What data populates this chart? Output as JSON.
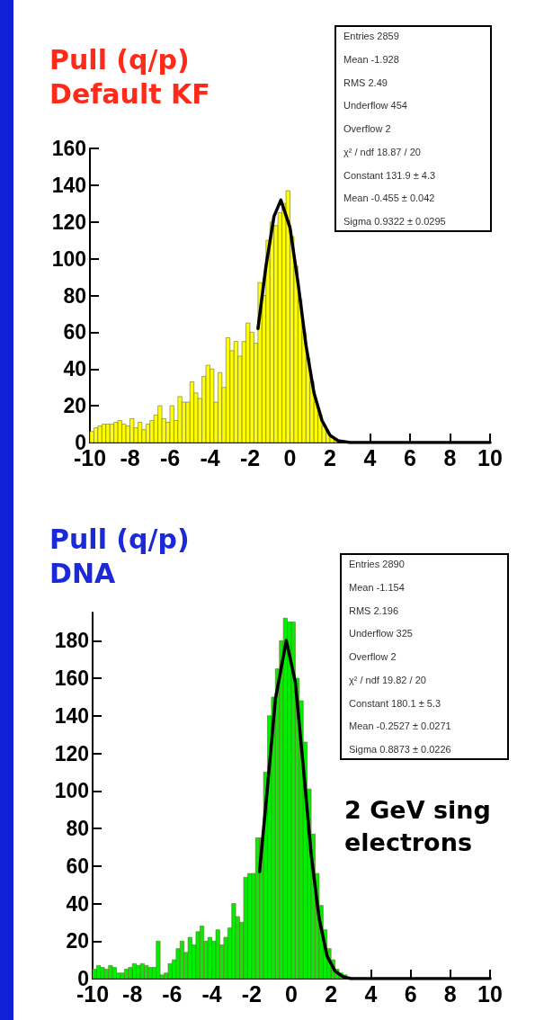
{
  "chart_data": [
    {
      "type": "histogram",
      "title": "Pull (q/p) Default KF",
      "xlim": [
        -10,
        10
      ],
      "xticks": [
        -10,
        -8,
        -6,
        -4,
        -2,
        0,
        2,
        4,
        6,
        8,
        10
      ],
      "ylim": [
        0,
        160
      ],
      "yticks": [
        0,
        20,
        40,
        60,
        80,
        100,
        120,
        140,
        160
      ],
      "bins": [
        -10,
        -9.8,
        -9.6,
        -9.4,
        -9.2,
        -9,
        -8.8,
        -8.6,
        -8.4,
        -8.2,
        -8,
        -7.8,
        -7.6,
        -7.4,
        -7.2,
        -7,
        -6.8,
        -6.6,
        -6.4,
        -6.2,
        -6,
        -5.8,
        -5.6,
        -5.4,
        -5.2,
        -5,
        -4.8,
        -4.6,
        -4.4,
        -4.2,
        -4,
        -3.8,
        -3.6,
        -3.4,
        -3.2,
        -3,
        -2.8,
        -2.6,
        -2.4,
        -2.2,
        -2,
        -1.8,
        -1.6,
        -1.4,
        -1.2,
        -1,
        -0.8,
        -0.6,
        -0.4,
        -0.2,
        0,
        0.2,
        0.4,
        0.6,
        0.8,
        1,
        1.2,
        1.4,
        1.6,
        1.8,
        2,
        2.2,
        2.4,
        2.6,
        2.8,
        3,
        3.2,
        3.4,
        3.6,
        3.8,
        4,
        4.2,
        4.4,
        4.6,
        4.8,
        5,
        5.2,
        5.4,
        5.6,
        5.8,
        6,
        6.2,
        6.4,
        6.6,
        6.8,
        7,
        7.2,
        7.4,
        7.6,
        7.8,
        8,
        8.2,
        8.4,
        8.6,
        8.8,
        9,
        9.2,
        9.4,
        9.6,
        9.8,
        10
      ],
      "series": [
        {
          "color": "#ffff00",
          "values": [
            6,
            8,
            9,
            10,
            10,
            10,
            11,
            12,
            10,
            9,
            13,
            8,
            11,
            7,
            10,
            12,
            15,
            20,
            13,
            11,
            20,
            12,
            25,
            22,
            22,
            33,
            27,
            24,
            36,
            42,
            40,
            22,
            38,
            30,
            57,
            50,
            55,
            47,
            55,
            65,
            60,
            54,
            87,
            80,
            110,
            120,
            118,
            125,
            130,
            137,
            112,
            96,
            78,
            60,
            46,
            33,
            22,
            15,
            9,
            5,
            3,
            2,
            null,
            null,
            0,
            0,
            0,
            0,
            0,
            0,
            0,
            0,
            0,
            0,
            0,
            0,
            0,
            0,
            0,
            0,
            0,
            0,
            0,
            0,
            0,
            0,
            0,
            0,
            0,
            0,
            0,
            0,
            0,
            0,
            0,
            0,
            0,
            0,
            0,
            0
          ]
        },
        {
          "type": "line",
          "color": "#000000",
          "x": [
            -1.6,
            -1.2,
            -0.8,
            -0.455,
            0,
            0.4,
            0.8,
            1.2,
            1.6,
            2,
            2.4,
            3,
            4,
            6,
            8,
            10
          ],
          "values": [
            62,
            96,
            123,
            131.9,
            117,
            87,
            53,
            27,
            12,
            4,
            1,
            0,
            0,
            0,
            0,
            0
          ]
        }
      ],
      "annotations": [
        "Entries 2859",
        "Mean -1.928",
        "RMS 2.49",
        "Underflow 454",
        "Overflow 2",
        "χ² / ndf 18.87 / 20",
        "Constant 131.9 ± 4.3",
        "Mean -0.455 ± 0.042",
        "Sigma 0.9322 ± 0.0295"
      ]
    },
    {
      "type": "histogram",
      "title": "Pull (q/p) DNA",
      "xlim": [
        -10,
        10
      ],
      "xticks": [
        -10,
        -8,
        -6,
        -4,
        -2,
        0,
        2,
        4,
        6,
        8,
        10
      ],
      "ylim": [
        0,
        195
      ],
      "yticks": [
        0,
        20,
        40,
        60,
        80,
        100,
        120,
        140,
        160,
        180
      ],
      "bins": [
        -10,
        -9.8,
        -9.6,
        -9.4,
        -9.2,
        -9,
        -8.8,
        -8.6,
        -8.4,
        -8.2,
        -8,
        -7.8,
        -7.6,
        -7.4,
        -7.2,
        -7,
        -6.8,
        -6.6,
        -6.4,
        -6.2,
        -6,
        -5.8,
        -5.6,
        -5.4,
        -5.2,
        -5,
        -4.8,
        -4.6,
        -4.4,
        -4.2,
        -4,
        -3.8,
        -3.6,
        -3.4,
        -3.2,
        -3,
        -2.8,
        -2.6,
        -2.4,
        -2.2,
        -2,
        -1.8,
        -1.6,
        -1.4,
        -1.2,
        -1,
        -0.8,
        -0.6,
        -0.4,
        -0.2,
        0,
        0.2,
        0.4,
        0.6,
        0.8,
        1,
        1.2,
        1.4,
        1.6,
        1.8,
        2,
        2.2,
        2.4,
        2.6,
        2.8,
        3,
        3.2,
        3.4,
        3.6,
        3.8,
        4,
        4.2,
        4.4,
        4.6,
        4.8,
        5,
        5.2,
        5.4,
        5.6,
        5.8,
        6,
        6.2,
        6.4,
        6.6,
        6.8,
        7,
        7.2,
        7.4,
        7.6,
        7.8,
        8,
        8.2,
        8.4,
        8.6,
        8.8,
        9,
        9.2,
        9.4,
        9.6,
        9.8,
        10
      ],
      "series": [
        {
          "color": "#00ee00",
          "values": [
            5,
            7,
            6,
            5,
            7,
            6,
            3,
            3,
            5,
            6,
            8,
            7,
            8,
            7,
            6,
            6,
            20,
            2,
            3,
            8,
            10,
            16,
            20,
            14,
            22,
            18,
            25,
            28,
            20,
            22,
            20,
            26,
            18,
            22,
            27,
            40,
            33,
            30,
            54,
            56,
            56,
            75,
            75,
            110,
            140,
            150,
            165,
            180,
            192,
            190,
            190,
            160,
            148,
            126,
            101,
            77,
            56,
            39,
            26,
            16,
            10,
            5,
            3,
            2,
            null,
            0,
            0,
            0,
            0,
            0,
            0,
            0,
            0,
            0,
            0,
            0,
            0,
            0,
            0,
            0,
            0,
            0,
            0,
            0,
            0,
            0,
            0,
            0,
            0,
            0,
            0,
            0,
            0,
            0,
            0,
            0,
            0,
            0,
            0,
            0
          ]
        },
        {
          "type": "line",
          "color": "#000000",
          "x": [
            -1.6,
            -1.2,
            -0.8,
            -0.2527,
            0.2,
            0.6,
            1,
            1.4,
            1.8,
            2.2,
            2.6,
            3,
            4,
            6,
            8,
            10
          ],
          "values": [
            57,
            102,
            149,
            180.1,
            158,
            113,
            66,
            32,
            12,
            4,
            1,
            0,
            0,
            0,
            0,
            0
          ]
        }
      ],
      "annotations": [
        "Entries 2890",
        "Mean -1.154",
        "RMS 2.196",
        "Underflow 325",
        "Overflow 2",
        "χ² / ndf 19.82 / 20",
        "Constant 180.1 ± 5.3",
        "Mean -0.2527 ± 0.0271",
        "Sigma 0.8873 ± 0.0226",
        "2 GeV sing electrons"
      ]
    }
  ]
}
